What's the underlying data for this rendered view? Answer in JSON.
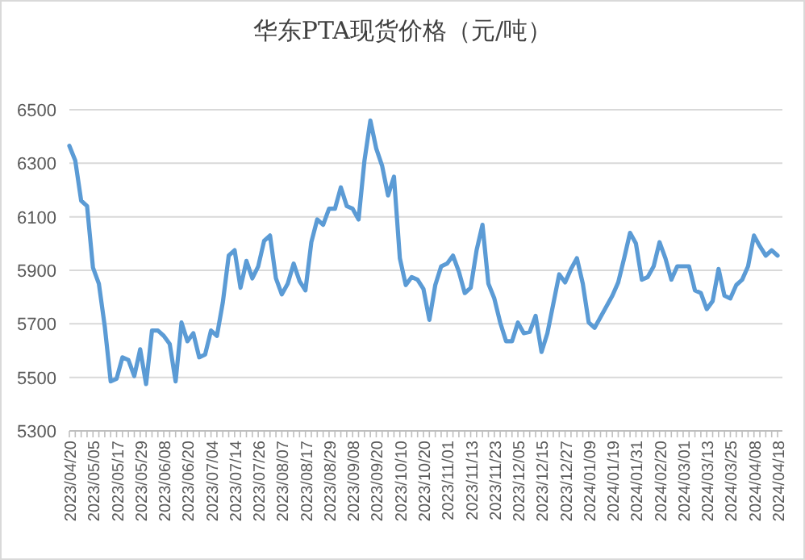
{
  "chart_data": {
    "type": "line",
    "title": "华东PTA现货价格（元/吨）",
    "categories": [
      "2023/04/20",
      null,
      null,
      null,
      "2023/05/05",
      null,
      null,
      null,
      "2023/05/17",
      null,
      null,
      null,
      "2023/05/29",
      null,
      null,
      null,
      "2023/06/08",
      null,
      null,
      null,
      "2023/06/20",
      null,
      null,
      null,
      "2023/07/04",
      null,
      null,
      null,
      "2023/07/14",
      null,
      null,
      null,
      "2023/07/26",
      null,
      null,
      null,
      "2023/08/07",
      null,
      null,
      null,
      "2023/08/17",
      null,
      null,
      null,
      "2023/08/29",
      null,
      null,
      null,
      "2023/09/08",
      null,
      null,
      null,
      "2023/09/20",
      null,
      null,
      null,
      "2023/10/10",
      null,
      null,
      null,
      "2023/10/20",
      null,
      null,
      null,
      "2023/11/01",
      null,
      null,
      null,
      "2023/11/13",
      null,
      null,
      null,
      "2023/11/23",
      null,
      null,
      null,
      "2023/12/05",
      null,
      null,
      null,
      "2023/12/15",
      null,
      null,
      null,
      "2023/12/27",
      null,
      null,
      null,
      "2024/01/09",
      null,
      null,
      null,
      "2024/01/19",
      null,
      null,
      null,
      "2024/01/31",
      null,
      null,
      null,
      "2024/02/20",
      null,
      null,
      null,
      "2024/03/01",
      null,
      null,
      null,
      "2024/03/13",
      null,
      null,
      null,
      "2024/03/25",
      null,
      null,
      null,
      "2024/04/08",
      null,
      null,
      null,
      "2024/04/18"
    ],
    "series": [
      {
        "color": "#5b9bd5",
        "values": [
          6365,
          6310,
          6160,
          6140,
          5910,
          5850,
          5690,
          5485,
          5495,
          5575,
          5565,
          5505,
          5605,
          5475,
          5675,
          5675,
          5655,
          5625,
          5485,
          5705,
          5635,
          5665,
          5575,
          5585,
          5675,
          5655,
          5780,
          5955,
          5975,
          5835,
          5935,
          5870,
          5915,
          6010,
          6030,
          5870,
          5810,
          5850,
          5925,
          5860,
          5825,
          6005,
          6090,
          6070,
          6130,
          6130,
          6210,
          6140,
          6130,
          6090,
          6310,
          6460,
          6355,
          6290,
          6180,
          6250,
          5945,
          5845,
          5875,
          5865,
          5830,
          5715,
          5845,
          5915,
          5925,
          5955,
          5895,
          5815,
          5835,
          5975,
          6070,
          5850,
          5795,
          5705,
          5635,
          5635,
          5705,
          5665,
          5670,
          5730,
          5595,
          5665,
          5775,
          5885,
          5855,
          5905,
          5945,
          5850,
          5705,
          5685,
          5725,
          5765,
          5805,
          5855,
          5945,
          6040,
          6000,
          5865,
          5875,
          5915,
          6005,
          5945,
          5865,
          5915,
          5915,
          5915,
          5825,
          5815,
          5755,
          5785,
          5905,
          5805,
          5795,
          5845,
          5865,
          5915,
          6030,
          5990,
          5955,
          5975,
          5955
        ]
      }
    ],
    "ylim": [
      5300,
      6500
    ],
    "yticks": [
      5300,
      5500,
      5700,
      5900,
      6100,
      6300,
      6500
    ],
    "grid": "y",
    "line_style": "solid",
    "marker": "none"
  }
}
